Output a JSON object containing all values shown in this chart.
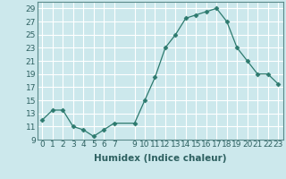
{
  "x": [
    0,
    1,
    2,
    3,
    4,
    5,
    6,
    7,
    9,
    10,
    11,
    12,
    13,
    14,
    15,
    16,
    17,
    18,
    19,
    20,
    21,
    22,
    23
  ],
  "y": [
    12,
    13.5,
    13.5,
    11,
    10.5,
    9.5,
    10.5,
    11.5,
    11.5,
    15,
    18.5,
    23,
    25,
    27.5,
    28,
    28.5,
    29,
    27,
    23,
    21,
    19,
    19,
    17.5
  ],
  "xlabel": "Humidex (Indice chaleur)",
  "xlim": [
    -0.5,
    23.5
  ],
  "ylim": [
    9,
    30
  ],
  "yticks": [
    9,
    11,
    13,
    15,
    17,
    19,
    21,
    23,
    25,
    27,
    29
  ],
  "xticks": [
    0,
    1,
    2,
    3,
    4,
    5,
    6,
    7,
    9,
    10,
    11,
    12,
    13,
    14,
    15,
    16,
    17,
    18,
    19,
    20,
    21,
    22,
    23
  ],
  "line_color": "#2d7a6e",
  "marker": "D",
  "marker_size": 2.5,
  "bg_color": "#cce8ec",
  "grid_color": "#ffffff",
  "xlabel_fontsize": 7.5,
  "tick_fontsize": 6.5,
  "spine_color": "#5a8a8a"
}
